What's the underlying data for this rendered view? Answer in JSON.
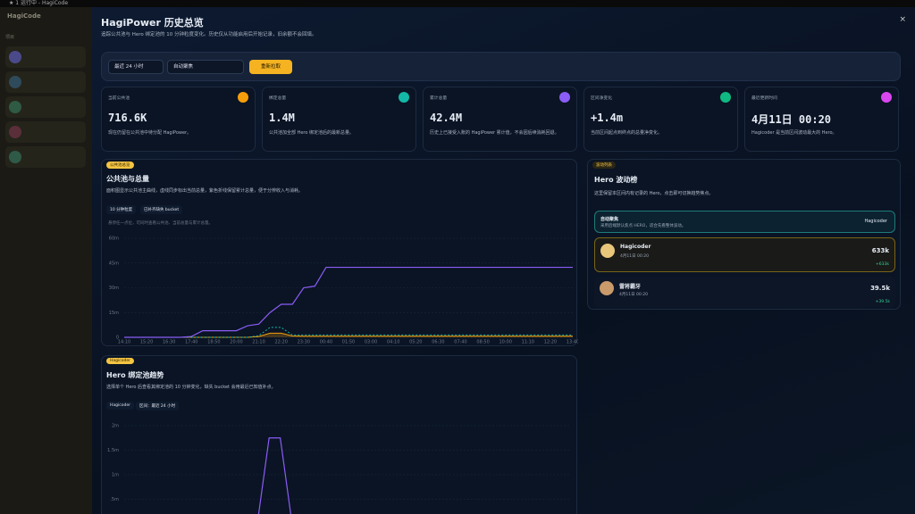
{
  "window": {
    "title": "★ 1 运行中 - HagiCode"
  },
  "sidebar": {
    "brand": "HagiCode",
    "section": "项目"
  },
  "header": {
    "title": "HagiPower 历史总览",
    "subtitle": "追踪公共池与 Hero 绑定池的 10 分钟粒度变化。历史仅从功能启用后开始记录，旧余额不会回填。",
    "close": "×"
  },
  "filters": {
    "range": "最近 24 小时",
    "focus": "自动聚焦",
    "refresh": "重新拉取"
  },
  "stats": [
    {
      "label": "当前公共池",
      "value": "716.6K",
      "desc": "现在仍留在公共池中待分配 HagiPower。"
    },
    {
      "label": "绑定总量",
      "value": "1.4M",
      "desc": "公共池加全部 Hero 绑定池后的最新总量。"
    },
    {
      "label": "累计总量",
      "value": "42.4M",
      "desc": "历史上已接受入账的 HagiPower 累计值，不会因后续消耗回退。"
    },
    {
      "label": "区间净变化",
      "value": "+1.4m",
      "desc": "当前区间起点到终点的总量净变化。"
    },
    {
      "label": "最近更新时间",
      "value": "4月11日 00:20",
      "desc": "Hagicoder 是当前区间波动最大的 Hero。"
    }
  ],
  "pool_card": {
    "badge": "公共池总览",
    "title": "公共池与总量",
    "desc": "面积图显示公共池主曲线，虚线同步标出当前总量，紫色折线保留累计总量，便于分辨收入与消耗。",
    "chips": [
      "10 分钟粒度",
      "已补齐缺失 bucket"
    ],
    "note": "悬停任一点位，可同时查看公共池、当前总量与累计总量。"
  },
  "hero_card": {
    "badge": "Hagicoder",
    "title": "Hero 绑定池趋势",
    "desc": "选择单个 Hero 后查看其绑定池的 10 分钟变化，缺失 bucket 会用最近已知值补点。",
    "chips": [
      "Hagicoder",
      "区间：最近 24 小时"
    ]
  },
  "ranking": {
    "badge": "波动列表",
    "title": "Hero 波动榜",
    "desc": "这里保留本区间内有记录的 Hero，点击即可切换趋势焦点。",
    "auto": {
      "title": "自动聚焦",
      "desc": "采用后端默认焦点 HERO，适合先看整体波动。",
      "hero": "Hagicoder"
    },
    "heroes": [
      {
        "name": "Hagicoder",
        "time": "4月11日 00:20",
        "value": "633k",
        "delta": "+633k"
      },
      {
        "name": "雷将霸牙",
        "time": "4月11日 00:20",
        "value": "39.5k",
        "delta": "+39.5k"
      }
    ]
  },
  "chart_data": [
    {
      "type": "line",
      "categories": [
        "14:10",
        null,
        "15:20",
        null,
        "16:30",
        null,
        "17:40",
        null,
        "18:50",
        null,
        "20:00",
        null,
        "21:10",
        null,
        "22:20",
        null,
        "23:30",
        null,
        "00:40",
        null,
        "01:50",
        null,
        "03:00",
        null,
        "04:10",
        null,
        "05:20",
        null,
        "06:30",
        null,
        "07:40",
        null,
        "08:50",
        null,
        "10:00",
        null,
        "11:10",
        null,
        "12:20",
        null,
        "13:40"
      ],
      "series": [
        {
          "color": "#8b5cf6",
          "style": "line",
          "values": [
            0,
            0,
            0,
            0,
            0,
            0,
            0.5,
            4,
            4,
            4,
            4,
            7,
            8,
            15,
            20,
            20,
            30,
            31,
            42.4,
            42.4,
            42.4,
            42.4,
            42.4,
            42.4,
            42.4,
            42.4,
            42.4,
            42.4,
            42.4,
            42.4,
            42.4,
            42.4,
            42.4,
            42.4,
            42.4,
            42.4,
            42.4,
            42.4,
            42.4,
            42.4,
            42.4
          ]
        },
        {
          "color": "#14b8a6",
          "style": "dashed",
          "values": [
            0,
            0,
            0,
            0,
            0,
            0,
            0,
            0,
            0,
            0,
            0,
            0,
            1,
            6,
            6,
            1.4,
            1.4,
            1.4,
            1.4,
            1.4,
            1.4,
            1.4,
            1.4,
            1.4,
            1.4,
            1.4,
            1.4,
            1.4,
            1.4,
            1.4,
            1.4,
            1.4,
            1.4,
            1.4,
            1.4,
            1.4,
            1.4,
            1.4,
            1.4,
            1.4,
            1.4
          ]
        },
        {
          "color": "#f59e0b",
          "style": "area",
          "values": [
            0,
            0,
            0,
            0,
            0,
            0,
            0,
            0,
            0,
            0,
            0,
            0,
            0.5,
            2.5,
            2.5,
            0.8,
            0.7,
            0.7,
            0.7,
            0.7,
            0.7,
            0.7,
            0.7,
            0.7,
            0.7,
            0.7,
            0.7,
            0.7,
            0.7,
            0.7,
            0.7,
            0.7,
            0.7,
            0.7,
            0.7,
            0.7,
            0.7,
            0.7,
            0.7,
            0.7,
            0.7
          ]
        }
      ],
      "ylim": [
        0,
        60
      ],
      "yticks": [
        {
          "value": 0,
          "label": "0"
        },
        {
          "value": 15,
          "label": "15m"
        },
        {
          "value": 30,
          "label": "30m"
        },
        {
          "value": 45,
          "label": "45m"
        },
        {
          "value": 60,
          "label": "60m"
        }
      ],
      "grid": true
    },
    {
      "type": "line",
      "series": [
        {
          "color": "#8b5cf6",
          "style": "line",
          "values": [
            null,
            null,
            null,
            null,
            null,
            null,
            0.1,
            0.1,
            0.1,
            0.1,
            0.1,
            0.1,
            0.1,
            1.75,
            1.75,
            0.1,
            0.15,
            0.1,
            0.1,
            0.1,
            0.1,
            0.1,
            0.1,
            0.1,
            0.1,
            0.1,
            0.1,
            0.1,
            0.1,
            0.1,
            0.1,
            0.1,
            0.1,
            0.1,
            0.1,
            0.1,
            0.1,
            0.1,
            0.1,
            0.1,
            0.1
          ]
        }
      ],
      "ylim": [
        0,
        2
      ],
      "yticks": [
        {
          "value": 0.5,
          "label": ".5m"
        },
        {
          "value": 1,
          "label": "1m"
        },
        {
          "value": 1.5,
          "label": "1.5m"
        },
        {
          "value": 2,
          "label": "2m"
        }
      ],
      "grid": true
    }
  ]
}
